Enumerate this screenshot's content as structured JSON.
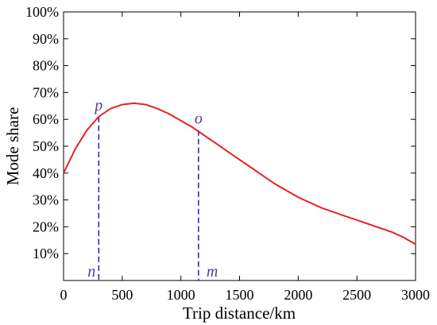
{
  "chart_data": {
    "type": "line",
    "title": "",
    "xlabel": "Trip distance/km",
    "ylabel": "Mode share",
    "xlim": [
      0,
      3000
    ],
    "ylim": [
      0,
      100
    ],
    "xticks": [
      0,
      500,
      1000,
      1500,
      2000,
      2500,
      3000
    ],
    "xtick_labels": [
      "0",
      "500",
      "1000",
      "1500",
      "2000",
      "2500",
      "3000"
    ],
    "yticks": [
      10,
      20,
      30,
      40,
      50,
      60,
      70,
      80,
      90,
      100
    ],
    "ytick_labels": [
      "10%",
      "20%",
      "30%",
      "40%",
      "50%",
      "60%",
      "70%",
      "80%",
      "90%",
      "100%"
    ],
    "grid": false,
    "series": [
      {
        "color": "#e8231f",
        "x": [
          0,
          100,
          200,
          300,
          400,
          500,
          600,
          700,
          800,
          900,
          1000,
          1100,
          1200,
          1300,
          1400,
          1500,
          1600,
          1700,
          1800,
          1900,
          2000,
          2100,
          2200,
          2300,
          2400,
          2500,
          2600,
          2700,
          2800,
          2900,
          3000
        ],
        "y": [
          40,
          49,
          56,
          61,
          64,
          65.5,
          66,
          65.5,
          64,
          62,
          59.5,
          57,
          54,
          51,
          48,
          45,
          42,
          39,
          36,
          33.5,
          31,
          29,
          27,
          25.5,
          24,
          22.5,
          21,
          19.5,
          18,
          16,
          13.5
        ]
      }
    ],
    "vlines": [
      {
        "x": 300,
        "y_top": 61,
        "color": "#1c1cd0"
      },
      {
        "x": 1150,
        "y_top": 56,
        "color": "#1c1cd0"
      }
    ],
    "annotations": [
      {
        "text": "p",
        "x": 300,
        "y": 61,
        "anchor": "top"
      },
      {
        "text": "o",
        "x": 1150,
        "y": 56,
        "anchor": "top"
      },
      {
        "text": "n",
        "x": 300,
        "y": 0,
        "anchor": "bottom-left"
      },
      {
        "text": "m",
        "x": 1150,
        "y": 0,
        "anchor": "bottom-right"
      }
    ]
  }
}
